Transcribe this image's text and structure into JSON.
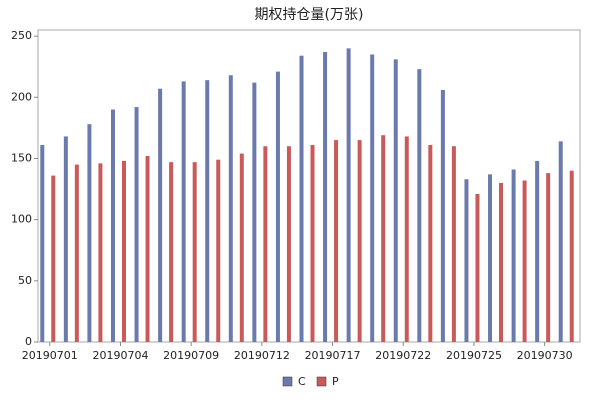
{
  "chart_data": {
    "type": "bar",
    "title": "期权持仓量(万张)",
    "categories": [
      "20190701",
      null,
      null,
      "20190704",
      null,
      null,
      "20190709",
      null,
      null,
      "20190712",
      null,
      null,
      "20190717",
      null,
      null,
      "20190722",
      null,
      null,
      "20190725",
      null,
      null,
      "20190730",
      null
    ],
    "series": [
      {
        "name": "C",
        "color": "#6b7aad",
        "values": [
          161,
          168,
          178,
          190,
          192,
          207,
          213,
          214,
          218,
          212,
          221,
          234,
          237,
          240,
          235,
          231,
          223,
          206,
          133,
          137,
          141,
          148,
          164
        ]
      },
      {
        "name": "P",
        "color": "#c85a5a",
        "values": [
          136,
          145,
          146,
          148,
          152,
          147,
          147,
          149,
          154,
          160,
          160,
          161,
          165,
          165,
          169,
          168,
          161,
          160,
          121,
          130,
          132,
          138,
          140
        ]
      }
    ],
    "ylim": [
      0,
      255
    ],
    "yticks": [
      0,
      50,
      100,
      150,
      200,
      250
    ],
    "legend": "bottom"
  }
}
